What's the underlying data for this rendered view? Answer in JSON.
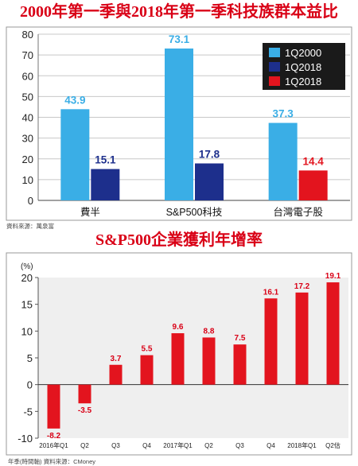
{
  "colors": {
    "title": "#d90016",
    "series_1q2000": "#3aaee6",
    "series_navy": "#1d2f8c",
    "series_red": "#e3141e",
    "bar_growth": "#e3141e",
    "plot_bg": "#efefef",
    "legend_bg": "#1a1a1a"
  },
  "chart_data": [
    {
      "type": "bar",
      "title": "2000年第一季與2018年第一季科技族群本益比",
      "categories": [
        "費半",
        "S&P500科技",
        "台灣電子股"
      ],
      "ylim": [
        0,
        80
      ],
      "yticks": [
        0,
        10,
        20,
        30,
        40,
        50,
        60,
        70,
        80
      ],
      "grid": true,
      "legend_position": "top-right",
      "legend": [
        {
          "label": "1Q2000",
          "color": "#3aaee6"
        },
        {
          "label": "1Q2018",
          "color": "#1d2f8c"
        },
        {
          "label": "1Q2018",
          "color": "#e3141e"
        }
      ],
      "bars": [
        {
          "category": "費半",
          "first": {
            "value": 43.9,
            "label": "43.9",
            "color": "#3aaee6"
          },
          "second": {
            "value": 15.1,
            "label": "15.1",
            "color": "#1d2f8c"
          }
        },
        {
          "category": "S&P500科技",
          "first": {
            "value": 73.1,
            "label": "73.1",
            "color": "#3aaee6"
          },
          "second": {
            "value": 17.8,
            "label": "17.8",
            "color": "#1d2f8c"
          }
        },
        {
          "category": "台灣電子股",
          "first": {
            "value": 37.3,
            "label": "37.3",
            "color": "#3aaee6"
          },
          "second": {
            "value": 14.4,
            "label": "14.4",
            "color": "#e3141e"
          }
        }
      ],
      "source": "資料來源：萬泉富"
    },
    {
      "type": "bar",
      "title": "S&P500企業獲利年增率",
      "unit": "(%)",
      "ylim": [
        -10,
        20
      ],
      "yticks": [
        -10,
        -5,
        0,
        5,
        10,
        15,
        20
      ],
      "grid": false,
      "categories": [
        "2016年Q1",
        "Q2",
        "Q3",
        "Q4",
        "2017年Q1",
        "Q2",
        "Q3",
        "Q4",
        "2018年Q1",
        "Q2估"
      ],
      "values": [
        -8.2,
        -3.5,
        3.7,
        5.5,
        9.6,
        8.8,
        7.5,
        16.1,
        17.2,
        19.1
      ],
      "value_labels": [
        "-8.2",
        "-3.5",
        "3.7",
        "5.5",
        "9.6",
        "8.8",
        "7.5",
        "16.1",
        "17.2",
        "19.1"
      ],
      "source": "年季(時間軸)  資料來源：CMoney"
    }
  ]
}
